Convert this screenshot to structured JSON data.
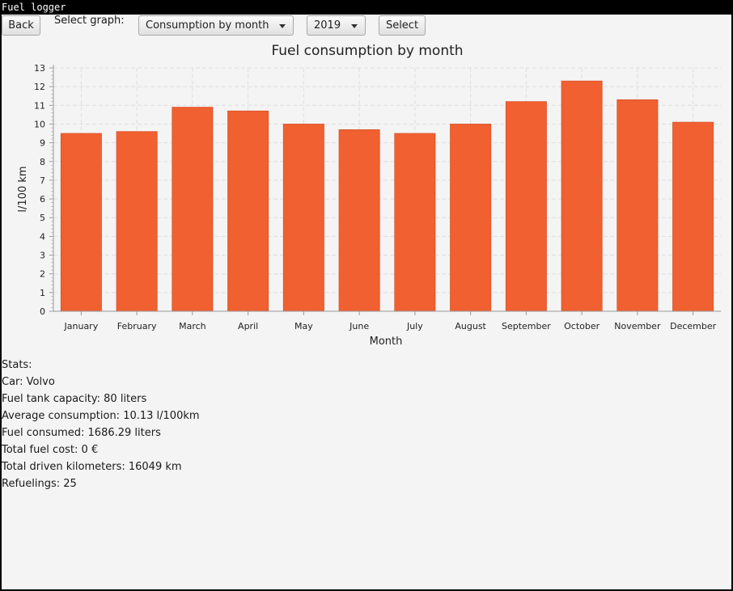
{
  "window": {
    "title": "Fuel logger"
  },
  "toolbar": {
    "back_label": "Back",
    "select_graph_label": "Select graph:",
    "graph_type_value": "Consumption by month",
    "year_value": "2019",
    "select_label": "Select"
  },
  "chart_data": {
    "type": "bar",
    "title": "Fuel consumption by month",
    "xlabel": "Month",
    "ylabel": "l/100 km",
    "categories": [
      "January",
      "February",
      "March",
      "April",
      "May",
      "June",
      "July",
      "August",
      "September",
      "October",
      "November",
      "December"
    ],
    "values": [
      9.5,
      9.6,
      10.9,
      10.7,
      10.0,
      9.7,
      9.5,
      10.0,
      11.2,
      12.3,
      11.3,
      10.1
    ],
    "ylim": [
      0,
      13
    ],
    "yticks": [
      "0",
      "1",
      "2",
      "3",
      "4",
      "5",
      "6",
      "7",
      "8",
      "9",
      "10",
      "11",
      "12",
      "13"
    ],
    "grid": true,
    "bar_color": "#f06030"
  },
  "stats": {
    "heading": "Stats:",
    "car": "Car: Volvo",
    "tank": "Fuel tank capacity: 80 liters",
    "avg": "Average consumption: 10.13 l/100km",
    "consumed": "Fuel consumed: 1686.29 liters",
    "cost": "Total fuel cost: 0 €",
    "km": "Total driven kilometers: 16049 km",
    "refuelings": "Refuelings: 25"
  }
}
